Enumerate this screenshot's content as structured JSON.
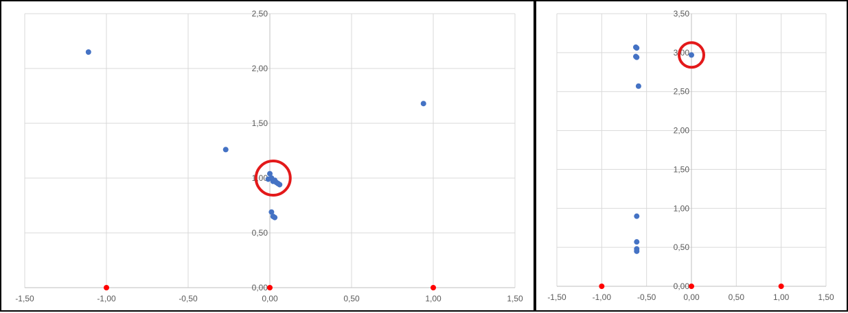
{
  "chart_data": [
    {
      "type": "scatter",
      "xlim": [
        -1.5,
        1.5
      ],
      "ylim": [
        0,
        2.5
      ],
      "x_ticks": [
        -1.5,
        -1.0,
        -0.5,
        0.0,
        0.5,
        1.0,
        1.5
      ],
      "y_ticks": [
        0.0,
        0.5,
        1.0,
        1.5,
        2.0,
        2.5
      ],
      "x_tick_labels": [
        "-1,50",
        "-1,00",
        "-0,50",
        "0,00",
        "0,50",
        "1,00",
        "1,50"
      ],
      "y_tick_labels": [
        "0,00",
        "0,50",
        "1,00",
        "1,50",
        "2,00",
        "2,50"
      ],
      "grid": true,
      "series": [
        {
          "color": "#4472c4",
          "points": [
            [
              -1.11,
              2.15
            ],
            [
              0.94,
              1.68
            ],
            [
              -0.27,
              1.26
            ],
            [
              0.0,
              1.04
            ],
            [
              -0.01,
              0.99
            ],
            [
              0.01,
              1.0
            ],
            [
              0.02,
              0.97
            ],
            [
              0.03,
              0.98
            ],
            [
              0.04,
              0.96
            ],
            [
              0.05,
              0.95
            ],
            [
              0.06,
              0.94
            ],
            [
              0.01,
              0.69
            ],
            [
              0.02,
              0.65
            ],
            [
              0.03,
              0.64
            ]
          ]
        },
        {
          "color": "#ff0000",
          "points": [
            [
              -1.0,
              0.0
            ],
            [
              0.0,
              0.0
            ],
            [
              1.0,
              0.0
            ]
          ]
        }
      ],
      "annotation": {
        "type": "circle",
        "color": "#e3191a",
        "x": 0.02,
        "y": 1.0
      }
    },
    {
      "type": "scatter",
      "xlim": [
        -1.5,
        1.5
      ],
      "ylim": [
        0,
        3.5
      ],
      "x_ticks": [
        -1.5,
        -1.0,
        -0.5,
        0.0,
        0.5,
        1.0,
        1.5
      ],
      "y_ticks": [
        0.0,
        0.5,
        1.0,
        1.5,
        2.0,
        2.5,
        3.0,
        3.5
      ],
      "x_tick_labels": [
        "-1,50",
        "-1,00",
        "-0,50",
        "0,00",
        "0,50",
        "1,00",
        "1,50"
      ],
      "y_tick_labels": [
        "0,00",
        "0,50",
        "1,00",
        "1,50",
        "2,00",
        "2,50",
        "3,00",
        "3,50"
      ],
      "grid": true,
      "series": [
        {
          "color": "#4472c4",
          "points": [
            [
              -0.62,
              3.07
            ],
            [
              -0.61,
              3.06
            ],
            [
              -0.62,
              2.95
            ],
            [
              -0.61,
              2.94
            ],
            [
              -0.59,
              2.57
            ],
            [
              -0.61,
              0.9
            ],
            [
              -0.61,
              0.57
            ],
            [
              -0.61,
              0.48
            ],
            [
              -0.61,
              0.45
            ],
            [
              0.0,
              2.97
            ]
          ]
        },
        {
          "color": "#ff0000",
          "points": [
            [
              -1.0,
              0.0
            ],
            [
              0.0,
              0.0
            ],
            [
              1.0,
              0.0
            ]
          ]
        }
      ],
      "annotation": {
        "type": "circle",
        "color": "#e3191a",
        "x": 0.0,
        "y": 2.97
      }
    }
  ]
}
